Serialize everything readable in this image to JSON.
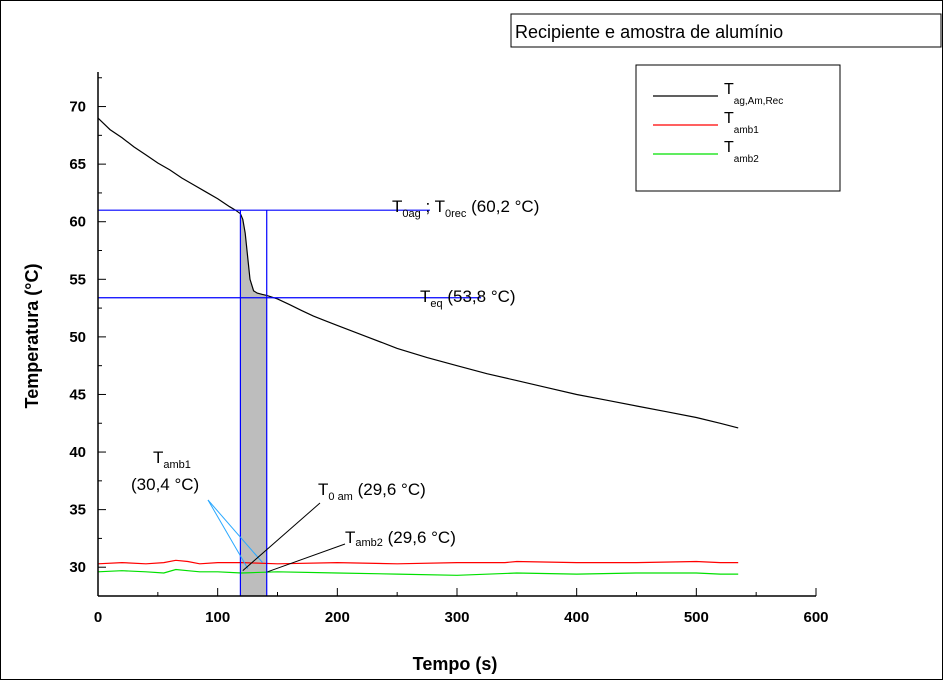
{
  "chart_data": {
    "type": "line",
    "title": "Recipiente e amostra de alumínio",
    "xlabel": "Tempo (s)",
    "ylabel": "Temperatura (°C)",
    "xlim": [
      0,
      600
    ],
    "ylim": [
      27.5,
      73
    ],
    "xticks": [
      0,
      100,
      200,
      300,
      400,
      500,
      600
    ],
    "yticks": [
      30,
      35,
      40,
      45,
      50,
      55,
      60,
      65,
      70
    ],
    "x_tick_labels": [
      "0",
      "100",
      "200",
      "300",
      "400",
      "500",
      "600"
    ],
    "y_tick_labels": [
      "30",
      "35",
      "40",
      "45",
      "50",
      "55",
      "60",
      "65",
      "70"
    ],
    "grid": false,
    "legend_position": "top-right",
    "series": [
      {
        "name_main": "T",
        "name_sub": "ag,Am,Rec",
        "color": "#000000",
        "x": [
          0,
          10,
          20,
          30,
          40,
          50,
          60,
          70,
          80,
          90,
          100,
          110,
          115,
          119,
          121,
          123,
          125,
          127,
          130,
          133,
          137,
          141,
          150,
          160,
          170,
          180,
          190,
          200,
          225,
          250,
          275,
          300,
          325,
          350,
          375,
          400,
          425,
          450,
          475,
          500,
          520,
          535
        ],
        "y": [
          69.0,
          68.0,
          67.3,
          66.5,
          65.8,
          65.1,
          64.5,
          63.8,
          63.2,
          62.6,
          62.0,
          61.3,
          61.0,
          60.7,
          60.2,
          59.0,
          57.0,
          55.0,
          54.0,
          53.8,
          53.7,
          53.6,
          53.3,
          52.8,
          52.3,
          51.8,
          51.4,
          51.0,
          50.0,
          49.0,
          48.2,
          47.5,
          46.8,
          46.2,
          45.6,
          45.0,
          44.5,
          44.0,
          43.5,
          43.0,
          42.5,
          42.1
        ]
      },
      {
        "name_main": "T",
        "name_sub": "amb1",
        "color": "#ff0000",
        "x": [
          0,
          20,
          40,
          55,
          65,
          75,
          85,
          100,
          120,
          150,
          200,
          250,
          300,
          340,
          350,
          400,
          450,
          500,
          520,
          535
        ],
        "y": [
          30.3,
          30.4,
          30.3,
          30.4,
          30.6,
          30.5,
          30.3,
          30.4,
          30.4,
          30.3,
          30.4,
          30.3,
          30.4,
          30.4,
          30.5,
          30.4,
          30.4,
          30.5,
          30.4,
          30.4
        ]
      },
      {
        "name_main": "T",
        "name_sub": "amb2",
        "color": "#00e000",
        "x": [
          0,
          20,
          40,
          55,
          65,
          75,
          85,
          100,
          120,
          150,
          200,
          250,
          300,
          350,
          400,
          450,
          500,
          520,
          535
        ],
        "y": [
          29.6,
          29.7,
          29.6,
          29.5,
          29.8,
          29.7,
          29.6,
          29.6,
          29.5,
          29.6,
          29.5,
          29.4,
          29.3,
          29.5,
          29.4,
          29.5,
          29.5,
          29.4,
          29.4
        ]
      }
    ],
    "shaded_region": {
      "x_start": 119,
      "x_end": 141,
      "color": "#bdbdbd"
    },
    "reference_lines": {
      "color": "#0000ff",
      "horizontal": [
        {
          "y": 61,
          "x_end": 244
        },
        {
          "y": 53.4,
          "x_end": 270
        }
      ],
      "vertical": [
        {
          "x": 119
        },
        {
          "x": 141
        }
      ]
    },
    "annotations": {
      "t0": {
        "part1_main": "T",
        "part1_sub": "0ag",
        "sep": " ; ",
        "part2_main": "T",
        "part2_sub": "0rec",
        "value": " (60,2 °C)"
      },
      "teq": {
        "main": "T",
        "sub": "eq",
        "value": " (53,8 °C)"
      },
      "tamb1": {
        "main": "T",
        "sub": "amb1",
        "value": "(30,4 °C)"
      },
      "t0am": {
        "main": "T",
        "sub": "0 am",
        "value": " (29,6 °C)"
      },
      "tamb2": {
        "main": "T",
        "sub": "amb2",
        "value": " (29,6 °C)"
      }
    }
  }
}
